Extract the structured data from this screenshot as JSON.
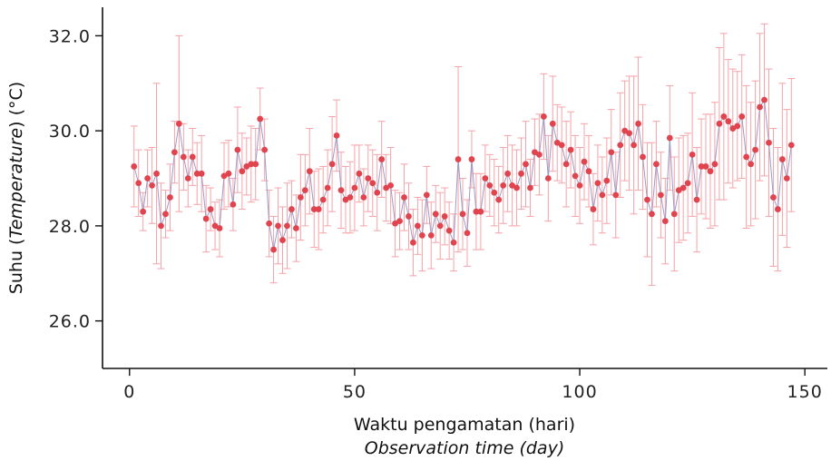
{
  "chart_data": {
    "type": "scatter",
    "xlabel": "Waktu pengamatan (hari)",
    "xlabel_en": "Observation time (day)",
    "ylabel_prefix": "Suhu (",
    "ylabel_en": "Temperature",
    "ylabel_suffix": ") (°C)",
    "xlim": [
      -6,
      155
    ],
    "ylim": [
      25.0,
      32.6
    ],
    "x_ticks": [
      {
        "value": 0,
        "label": "0"
      },
      {
        "value": 50,
        "label": "50"
      },
      {
        "value": 100,
        "label": "100"
      },
      {
        "value": 150,
        "label": "150"
      }
    ],
    "y_ticks": [
      {
        "value": 26,
        "label": "26.0"
      },
      {
        "value": 28,
        "label": "28.0"
      },
      {
        "value": 30,
        "label": "30.0"
      },
      {
        "value": 32,
        "label": "32.0"
      }
    ],
    "grid": false,
    "point_color": "#e0454f",
    "error_color": "#f4a3a8",
    "line_color": "#9a9cc8",
    "series": [
      {
        "x": [
          1,
          2,
          3,
          4,
          5,
          6,
          7,
          8,
          9,
          10,
          11,
          12,
          13,
          14,
          15,
          16,
          17,
          18,
          19,
          20,
          21,
          22,
          23,
          24,
          25,
          26,
          27,
          28,
          29,
          30,
          31,
          32,
          33,
          34,
          35,
          36,
          37,
          38,
          39,
          40,
          41,
          42,
          43,
          44,
          45,
          46,
          47,
          48,
          49,
          50,
          51,
          52,
          53,
          54,
          55,
          56,
          57,
          58,
          59,
          60,
          61,
          62,
          63,
          64,
          65,
          66,
          67,
          68,
          69,
          70,
          71,
          72,
          73,
          74,
          75,
          76,
          77,
          78,
          79,
          80,
          81,
          82,
          83,
          84,
          85,
          86,
          87,
          88,
          89,
          90,
          91,
          92,
          93,
          94,
          95,
          96,
          97,
          98,
          99,
          100,
          101,
          102,
          103,
          104,
          105,
          106,
          107,
          108,
          109,
          110,
          111,
          112,
          113,
          114,
          115,
          116,
          117,
          118,
          119,
          120,
          121,
          122,
          123,
          124,
          125,
          126,
          127,
          128,
          129,
          130,
          131,
          132,
          133,
          134,
          135,
          136,
          137,
          138,
          139,
          140,
          141,
          142,
          143,
          144,
          145,
          146,
          147
        ],
        "y": [
          29.25,
          28.9,
          28.3,
          29.0,
          28.85,
          29.1,
          28.0,
          28.25,
          28.6,
          29.55,
          30.15,
          29.45,
          29.0,
          29.45,
          29.1,
          29.1,
          28.15,
          28.35,
          28.0,
          27.95,
          29.05,
          29.1,
          28.45,
          29.6,
          29.15,
          29.25,
          29.3,
          29.3,
          30.25,
          29.6,
          28.05,
          27.5,
          28.0,
          27.7,
          28.0,
          28.35,
          27.95,
          28.6,
          28.75,
          29.15,
          28.35,
          28.35,
          28.55,
          28.8,
          29.3,
          29.9,
          28.75,
          28.55,
          28.6,
          28.8,
          29.1,
          28.6,
          29.0,
          28.9,
          28.7,
          29.4,
          28.8,
          28.85,
          28.05,
          28.1,
          28.6,
          28.2,
          27.65,
          28.0,
          27.8,
          28.65,
          27.8,
          28.25,
          28.0,
          28.2,
          27.9,
          27.65,
          29.4,
          28.25,
          27.85,
          29.4,
          28.3,
          28.3,
          29.0,
          28.85,
          28.7,
          28.55,
          28.85,
          29.1,
          28.85,
          28.8,
          29.1,
          29.3,
          28.8,
          29.55,
          29.5,
          30.3,
          29.0,
          30.15,
          29.75,
          29.7,
          29.3,
          29.6,
          29.05,
          28.85,
          29.35,
          29.15,
          28.35,
          28.9,
          28.65,
          28.95,
          29.55,
          28.65,
          29.7,
          30.0,
          29.95,
          29.7,
          30.15,
          29.45,
          28.55,
          28.25,
          29.3,
          28.65,
          28.1,
          29.85,
          28.25,
          28.75,
          28.8,
          28.9,
          29.5,
          28.55,
          29.25,
          29.25,
          29.15,
          29.3,
          30.15,
          30.3,
          30.2,
          30.05,
          30.1,
          30.3,
          29.45,
          29.3,
          29.6,
          30.5,
          30.65,
          29.75,
          28.6,
          28.35,
          29.4,
          29.0,
          29.7
        ],
        "error": [
          0.85,
          0.7,
          0.4,
          0.6,
          0.8,
          1.9,
          0.9,
          0.5,
          0.7,
          0.65,
          1.85,
          0.7,
          0.6,
          0.6,
          0.65,
          0.8,
          0.7,
          0.45,
          0.5,
          0.6,
          0.7,
          0.7,
          0.55,
          0.9,
          0.8,
          0.6,
          0.8,
          0.75,
          0.65,
          0.65,
          0.7,
          0.7,
          0.8,
          0.7,
          0.9,
          0.6,
          0.7,
          0.9,
          0.75,
          0.9,
          0.8,
          0.85,
          0.7,
          0.8,
          1.0,
          0.75,
          0.8,
          0.7,
          0.75,
          0.9,
          0.6,
          0.6,
          0.7,
          0.7,
          0.8,
          0.8,
          0.7,
          0.8,
          0.7,
          0.6,
          0.7,
          0.7,
          0.7,
          0.6,
          0.75,
          0.6,
          0.7,
          0.6,
          0.7,
          0.6,
          0.6,
          0.6,
          1.95,
          0.75,
          0.7,
          0.6,
          0.8,
          0.8,
          0.7,
          0.65,
          0.7,
          0.7,
          0.8,
          0.8,
          0.85,
          0.8,
          0.75,
          0.9,
          0.6,
          0.7,
          0.85,
          0.9,
          0.9,
          1.0,
          0.8,
          0.8,
          0.9,
          0.8,
          0.85,
          0.8,
          0.8,
          0.75,
          0.75,
          0.8,
          0.8,
          0.9,
          0.9,
          0.9,
          1.1,
          1.05,
          1.2,
          1.45,
          1.4,
          1.1,
          1.2,
          1.5,
          0.9,
          0.9,
          0.9,
          1.1,
          1.2,
          1.1,
          1.1,
          1.05,
          1.3,
          1.1,
          1.0,
          1.1,
          1.2,
          1.3,
          1.6,
          1.75,
          1.3,
          1.25,
          1.15,
          1.3,
          1.5,
          1.3,
          1.45,
          1.55,
          1.6,
          1.55,
          1.45,
          1.3,
          1.6,
          1.45,
          1.4
        ]
      }
    ]
  }
}
